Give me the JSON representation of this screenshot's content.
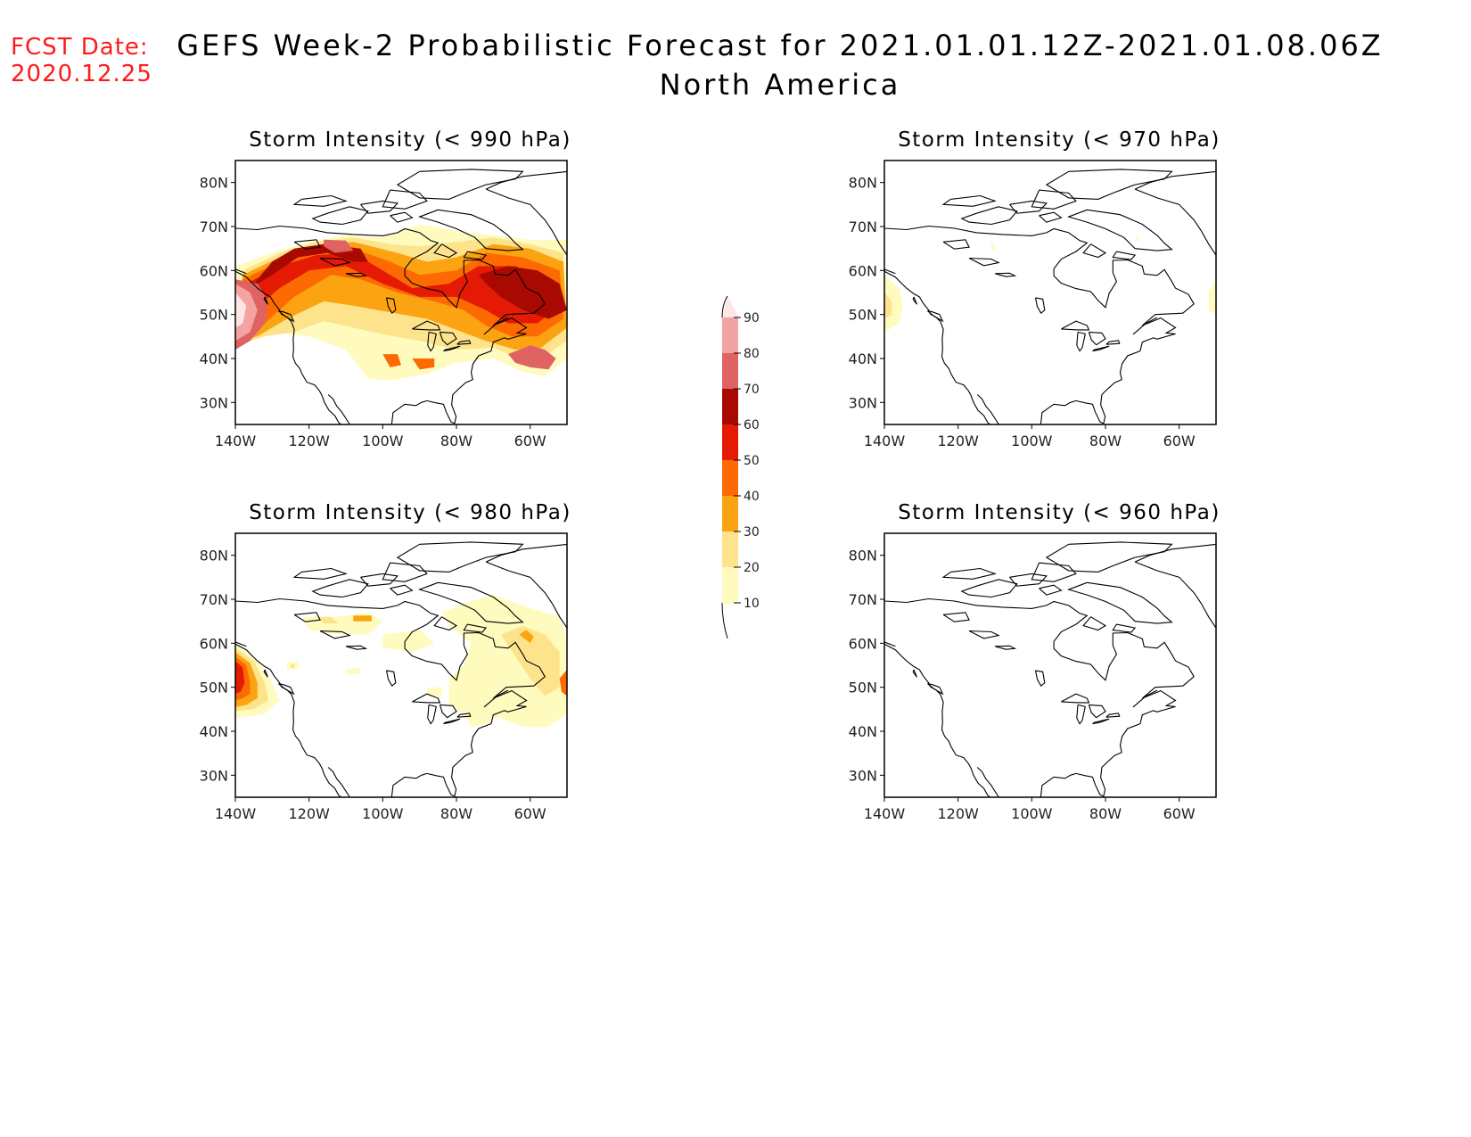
{
  "fcst_date": {
    "label": "FCST Date:",
    "value": "2020.12.25"
  },
  "title": "GEFS Week-2 Probabilistic Forecast for 2021.01.01.12Z-2021.01.08.06Z",
  "subtitle": "North America",
  "axes": {
    "lat_labels": [
      "80N",
      "70N",
      "60N",
      "50N",
      "40N",
      "30N"
    ],
    "lon_labels": [
      "140W",
      "120W",
      "100W",
      "80W",
      "60W"
    ]
  },
  "colorbar": {
    "levels": [
      "10",
      "20",
      "30",
      "40",
      "50",
      "60",
      "70",
      "80",
      "90"
    ],
    "colors": [
      "#fffbbf",
      "#fde48c",
      "#fca311",
      "#fd6a02",
      "#e41a05",
      "#a80a02",
      "#df6363",
      "#f4a3a3",
      "#fde6e6"
    ]
  },
  "panels": [
    {
      "id": "p990",
      "title": "Storm Intensity (< 990 hPa)",
      "threshold_hPa": 990,
      "coverage": "widespread"
    },
    {
      "id": "p970",
      "title": "Storm Intensity (< 970 hPa)",
      "threshold_hPa": 970,
      "coverage": "sparse"
    },
    {
      "id": "p980",
      "title": "Storm Intensity (< 980 hPa)",
      "threshold_hPa": 980,
      "coverage": "moderate"
    },
    {
      "id": "p960",
      "title": "Storm Intensity (< 960 hPa)",
      "threshold_hPa": 960,
      "coverage": "none"
    }
  ]
}
